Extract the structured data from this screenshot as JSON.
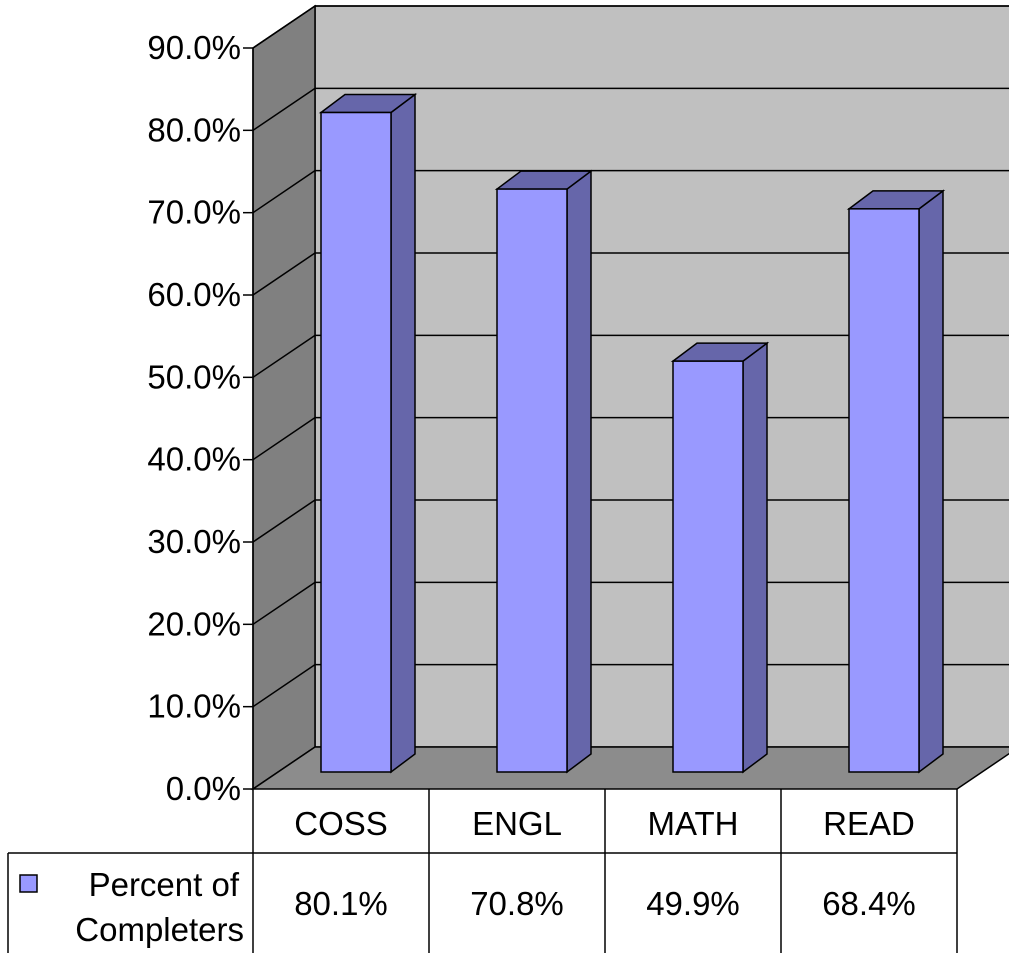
{
  "chart_data": {
    "type": "bar",
    "categories": [
      "COSS",
      "ENGL",
      "MATH",
      "READ"
    ],
    "series": [
      {
        "name": "Percent of Completers",
        "values": [
          80.1,
          70.8,
          49.9,
          68.4
        ],
        "value_labels": [
          "80.1%",
          "70.8%",
          "49.9%",
          "68.4%"
        ],
        "color": "#9999ff",
        "side_color": "#6666aa"
      }
    ],
    "legend_label_lines": [
      "Percent of",
      "Completers"
    ],
    "ylim": [
      0,
      90
    ],
    "y_ticks": [
      0,
      10,
      20,
      30,
      40,
      50,
      60,
      70,
      80,
      90
    ],
    "y_tick_labels": [
      "0.0%",
      "10.0%",
      "20.0%",
      "30.0%",
      "40.0%",
      "50.0%",
      "60.0%",
      "70.0%",
      "80.0%",
      "90.0%"
    ],
    "grid": true,
    "three_d": true,
    "data_table": true,
    "legend_placement": "data-table-left",
    "colors": {
      "wall": "#c0c0c0",
      "side_wall": "#808080",
      "floor": "#8c8c8c"
    }
  }
}
